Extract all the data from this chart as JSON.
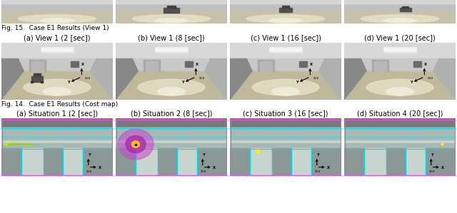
{
  "fig_width": 6.4,
  "fig_height": 2.99,
  "dpi": 100,
  "background_color": "#ffffff",
  "row1_labels": [
    "(a) Situation 1 (2 [sec])",
    "(b) Situation 2 (8 [sec])",
    "(c) Situation 3 (16 [sec])",
    "(d) Situation 4 (20 [sec])"
  ],
  "row1_figlabel": "Fig. 14.  Case E1 Results (Cost map)",
  "row2_labels": [
    "(a) View 1 (2 [sec])",
    "(b) View 1 (8 [sec])",
    "(c) View 1 (16 [sec])",
    "(d) View 1 (20 [sec])"
  ],
  "row2_figlabel": "Fig. 15.  Case E1 Results (View 1)",
  "label_fontsize": 7.0,
  "figlabel_fontsize": 6.5,
  "map_dark": "#8a9aa0",
  "map_light": "#b8c8c4",
  "map_floor": "#c0ccc8",
  "cyan": "#00e8e8",
  "magenta": "#ff44ff",
  "corridor_wall": "#b0b0b0",
  "corridor_floor": "#d8cfc0",
  "corridor_floor2": "#e8e0d0",
  "corridor_bright": "#f0ece0"
}
